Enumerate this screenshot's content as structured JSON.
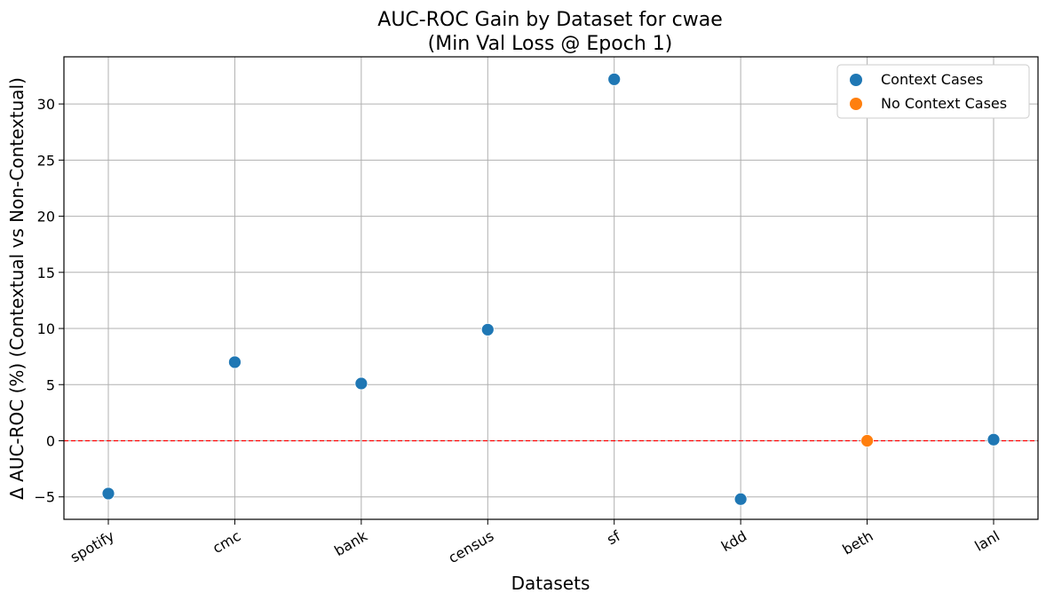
{
  "chart_data": {
    "type": "scatter",
    "title_line1": "AUC-ROC Gain by Dataset for cwae",
    "title_line2": "(Min Val Loss @ Epoch 1)",
    "xlabel": "Datasets",
    "ylabel": "Δ AUC-ROC (%) (Contextual vs Non-Contextual)",
    "categories": [
      "spotify",
      "cmc",
      "bank",
      "census",
      "sf",
      "kdd",
      "beth",
      "lanl"
    ],
    "yticks": [
      -5,
      0,
      5,
      10,
      15,
      20,
      25,
      30
    ],
    "ylim": [
      -7,
      34.2
    ],
    "grid": true,
    "legend_position": "top-right",
    "reference_line": {
      "y": 0,
      "color": "#ff0000",
      "style": "dashed"
    },
    "series": [
      {
        "name": "Context Cases",
        "color": "#1f77b4",
        "points": [
          {
            "x": "spotify",
            "y": -4.7
          },
          {
            "x": "cmc",
            "y": 7.0
          },
          {
            "x": "bank",
            "y": 5.1
          },
          {
            "x": "census",
            "y": 9.9
          },
          {
            "x": "sf",
            "y": 32.2
          },
          {
            "x": "kdd",
            "y": -5.2
          },
          {
            "x": "lanl",
            "y": 0.1
          }
        ]
      },
      {
        "name": "No Context Cases",
        "color": "#ff7f0e",
        "points": [
          {
            "x": "beth",
            "y": 0.0
          }
        ]
      }
    ]
  }
}
